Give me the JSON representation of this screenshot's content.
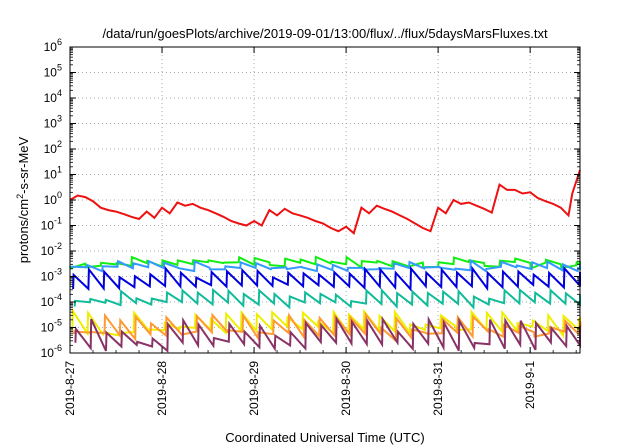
{
  "chart_data": {
    "type": "line",
    "title": "/data/run/goesPlots/archive/2019-09-01/13:00/flux/../flux/5daysMarsFluxes.txt",
    "xlabel": "Coordinated Universal Time (UTC)",
    "ylabel": {
      "pre": "protons/cm",
      "sup": "2",
      "post": "-s-sr-MeV"
    },
    "yscale": "log",
    "ylim": [
      1e-06,
      1000000.0
    ],
    "y_ticks": [
      {
        "value": -6,
        "base": "10",
        "exp": "-6"
      },
      {
        "value": -5,
        "base": "10",
        "exp": "-5"
      },
      {
        "value": -4,
        "base": "10",
        "exp": "-4"
      },
      {
        "value": -3,
        "base": "10",
        "exp": "-3"
      },
      {
        "value": -2,
        "base": "10",
        "exp": "-2"
      },
      {
        "value": -1,
        "base": "10",
        "exp": "-1"
      },
      {
        "value": 0,
        "base": "10",
        "exp": "0"
      },
      {
        "value": 1,
        "base": "10",
        "exp": "1"
      },
      {
        "value": 2,
        "base": "10",
        "exp": "2"
      },
      {
        "value": 3,
        "base": "10",
        "exp": "3"
      },
      {
        "value": 4,
        "base": "10",
        "exp": "4"
      },
      {
        "value": 5,
        "base": "10",
        "exp": "5"
      },
      {
        "value": 6,
        "base": "10",
        "exp": "6"
      }
    ],
    "xlim": [
      "2019-08-27 00:00",
      "2019-09-01 13:00"
    ],
    "x_ticks": [
      "2019-8-27",
      "2019-8-28",
      "2019-8-29",
      "2019-8-30",
      "2019-8-31",
      "2019-9-1"
    ],
    "grid": true,
    "colors": {
      "red": "#ee1111",
      "green": "#11ee11",
      "lightblue": "#3399ff",
      "blue": "#0000dd",
      "teal": "#11bb99",
      "yellow": "#eeee00",
      "orange": "#ff9933",
      "purple": "#883366"
    },
    "series": [
      {
        "color": "red",
        "x": [
          "2019-08-27 00:00",
          "2019-08-27 02:00",
          "2019-08-27 04:00",
          "2019-08-27 06:00",
          "2019-08-27 08:00",
          "2019-08-27 10:00",
          "2019-08-27 12:00",
          "2019-08-27 14:00",
          "2019-08-27 16:00",
          "2019-08-27 18:00",
          "2019-08-27 20:00",
          "2019-08-27 22:00",
          "2019-08-28 00:00",
          "2019-08-28 02:00",
          "2019-08-28 04:00",
          "2019-08-28 06:00",
          "2019-08-28 08:00",
          "2019-08-28 10:00",
          "2019-08-28 12:00",
          "2019-08-28 14:00",
          "2019-08-28 16:00",
          "2019-08-28 18:00",
          "2019-08-28 20:00",
          "2019-08-28 22:00",
          "2019-08-29 00:00",
          "2019-08-29 02:00",
          "2019-08-29 04:00",
          "2019-08-29 06:00",
          "2019-08-29 08:00",
          "2019-08-29 10:00",
          "2019-08-29 12:00",
          "2019-08-29 14:00",
          "2019-08-29 16:00",
          "2019-08-29 18:00",
          "2019-08-29 20:00",
          "2019-08-29 22:00",
          "2019-08-30 00:00",
          "2019-08-30 02:00",
          "2019-08-30 04:00",
          "2019-08-30 06:00",
          "2019-08-30 08:00",
          "2019-08-30 10:00",
          "2019-08-30 12:00",
          "2019-08-30 14:00",
          "2019-08-30 16:00",
          "2019-08-30 18:00",
          "2019-08-30 20:00",
          "2019-08-30 22:00",
          "2019-08-31 00:00",
          "2019-08-31 02:00",
          "2019-08-31 04:00",
          "2019-08-31 06:00",
          "2019-08-31 08:00",
          "2019-08-31 10:00",
          "2019-08-31 12:00",
          "2019-08-31 14:00",
          "2019-08-31 16:00",
          "2019-08-31 18:00",
          "2019-08-31 20:00",
          "2019-08-31 22:00",
          "2019-09-01 00:00",
          "2019-09-01 02:00",
          "2019-09-01 04:00",
          "2019-09-01 06:00",
          "2019-09-01 08:00",
          "2019-09-01 10:00",
          "2019-09-01 11:00",
          "2019-09-01 13:00"
        ],
        "y": [
          1.0,
          1.5,
          1.3,
          0.9,
          0.5,
          0.4,
          0.35,
          0.28,
          0.22,
          0.18,
          0.35,
          0.2,
          0.5,
          0.3,
          0.8,
          0.6,
          0.7,
          0.5,
          0.4,
          0.3,
          0.22,
          0.15,
          0.12,
          0.1,
          0.15,
          0.1,
          0.4,
          0.25,
          0.45,
          0.3,
          0.25,
          0.2,
          0.15,
          0.12,
          0.08,
          0.06,
          0.09,
          0.05,
          0.5,
          0.3,
          0.6,
          0.45,
          0.35,
          0.25,
          0.18,
          0.12,
          0.08,
          0.06,
          0.5,
          0.3,
          1.0,
          0.7,
          0.8,
          0.6,
          0.45,
          0.32,
          4.0,
          2.5,
          2.5,
          1.8,
          2.0,
          1.2,
          0.9,
          0.7,
          0.5,
          0.25,
          1.8,
          15.0
        ]
      },
      {
        "color": "green",
        "base": 0.003,
        "amp": 0.004,
        "variation": 0.5,
        "phase": 0.0
      },
      {
        "color": "lightblue",
        "base": 0.002,
        "amp": 0.003,
        "variation": 0.4,
        "phase": 0.1
      },
      {
        "color": "blue",
        "base": 0.0004,
        "amp": 0.0015,
        "variation": 0.4,
        "phase": 0.2
      },
      {
        "color": "teal",
        "base": 8e-05,
        "amp": 0.0002,
        "variation": 0.5,
        "phase": 0.3
      },
      {
        "color": "yellow",
        "base": 8e-06,
        "amp": 2.5e-05,
        "variation": 0.8,
        "phase": 0.15
      },
      {
        "color": "orange",
        "base": 5e-06,
        "amp": 1.8e-05,
        "variation": 0.8,
        "phase": 0.25
      },
      {
        "color": "purple",
        "base": 2e-06,
        "amp": 1.2e-05,
        "variation": 0.8,
        "phase": 0.35
      }
    ],
    "sawtooth_period_hours": 4
  }
}
